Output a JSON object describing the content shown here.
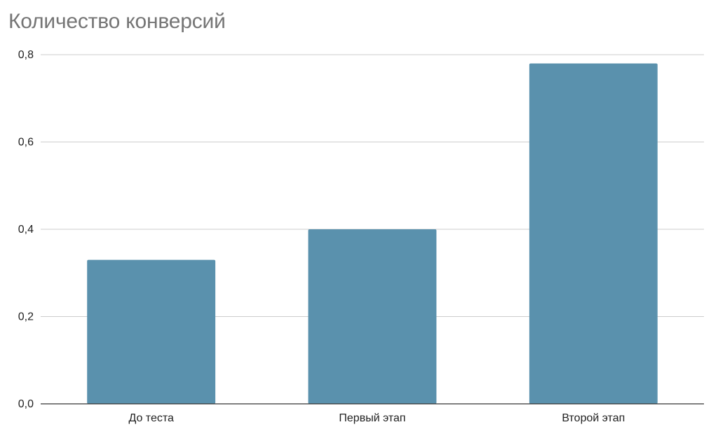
{
  "chart_data": {
    "type": "bar",
    "title": "Количество конверсий",
    "xlabel": "",
    "ylabel": "",
    "categories": [
      "До теста",
      "Первый этап",
      "Второй этап"
    ],
    "values": [
      0.33,
      0.4,
      0.78
    ],
    "ylim": [
      0,
      0.8
    ],
    "yticks": [
      "0,0",
      "0,2",
      "0,4",
      "0,6",
      "0,8"
    ],
    "ytick_values": [
      0,
      0.2,
      0.4,
      0.6,
      0.8
    ],
    "grid": true,
    "legend": "none",
    "bar_color": "#5a91ad",
    "grid_color": "#cccccc",
    "axis_color": "#333333",
    "title_color": "#757575"
  }
}
